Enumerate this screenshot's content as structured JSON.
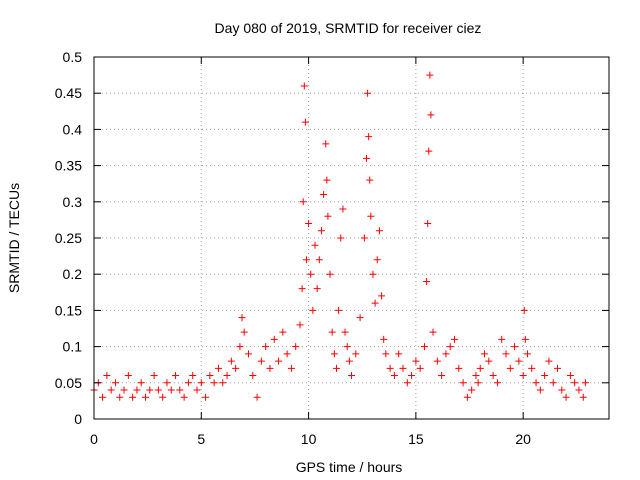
{
  "chart_data": {
    "type": "scatter",
    "title": "Day 080 of 2019, SRMTID for receiver ciez",
    "xlabel": "GPS time / hours",
    "ylabel": "SRMTID / TECUs",
    "xlim": [
      0,
      24
    ],
    "ylim": [
      0,
      0.5
    ],
    "xticks": [
      "0",
      "5",
      "10",
      "15",
      "20"
    ],
    "xtick_values": [
      0,
      5,
      10,
      15,
      20
    ],
    "yticks": [
      "0",
      "0.05",
      "0.1",
      "0.15",
      "0.2",
      "0.25",
      "0.3",
      "0.35",
      "0.4",
      "0.45",
      "0.5"
    ],
    "ytick_values": [
      0,
      0.05,
      0.1,
      0.15,
      0.2,
      0.25,
      0.3,
      0.35,
      0.4,
      0.45,
      0.5
    ],
    "grid": true,
    "marker": "+",
    "color": "#ff0000",
    "series": [
      {
        "name": "SRMTID",
        "x": [
          0.0,
          0.2,
          0.4,
          0.6,
          0.8,
          1.0,
          1.2,
          1.4,
          1.6,
          1.8,
          2.0,
          2.2,
          2.4,
          2.6,
          2.8,
          3.0,
          3.2,
          3.4,
          3.6,
          3.8,
          4.0,
          4.2,
          4.4,
          4.6,
          4.8,
          5.0,
          5.2,
          5.4,
          5.6,
          5.8,
          6.0,
          6.2,
          6.4,
          6.6,
          6.8,
          6.9,
          7.0,
          7.2,
          7.4,
          7.6,
          7.8,
          8.0,
          8.2,
          8.4,
          8.6,
          8.8,
          9.0,
          9.2,
          9.4,
          9.6,
          9.7,
          9.75,
          9.8,
          9.85,
          9.9,
          10.0,
          10.1,
          10.2,
          10.3,
          10.4,
          10.5,
          10.6,
          10.7,
          10.8,
          10.85,
          10.9,
          11.0,
          11.1,
          11.2,
          11.3,
          11.4,
          11.5,
          11.6,
          11.7,
          11.8,
          11.9,
          12.0,
          12.2,
          12.4,
          12.6,
          12.7,
          12.75,
          12.8,
          12.85,
          12.9,
          13.0,
          13.1,
          13.2,
          13.3,
          13.4,
          13.5,
          13.6,
          13.8,
          14.0,
          14.2,
          14.4,
          14.6,
          14.8,
          15.0,
          15.2,
          15.4,
          15.5,
          15.55,
          15.6,
          15.65,
          15.7,
          15.8,
          16.0,
          16.2,
          16.4,
          16.6,
          16.8,
          17.0,
          17.2,
          17.4,
          17.6,
          17.8,
          17.9,
          18.0,
          18.2,
          18.4,
          18.6,
          18.8,
          19.0,
          19.2,
          19.4,
          19.6,
          19.8,
          20.0,
          20.05,
          20.1,
          20.2,
          20.4,
          20.6,
          20.8,
          21.0,
          21.2,
          21.4,
          21.6,
          21.8,
          22.0,
          22.2,
          22.4,
          22.6,
          22.8,
          22.9
        ],
        "y": [
          0.04,
          0.05,
          0.03,
          0.06,
          0.04,
          0.05,
          0.03,
          0.04,
          0.06,
          0.03,
          0.04,
          0.05,
          0.03,
          0.04,
          0.06,
          0.04,
          0.03,
          0.05,
          0.04,
          0.06,
          0.04,
          0.03,
          0.05,
          0.06,
          0.04,
          0.05,
          0.03,
          0.06,
          0.05,
          0.07,
          0.05,
          0.06,
          0.08,
          0.07,
          0.1,
          0.14,
          0.12,
          0.09,
          0.06,
          0.03,
          0.08,
          0.1,
          0.07,
          0.11,
          0.08,
          0.12,
          0.09,
          0.07,
          0.1,
          0.13,
          0.18,
          0.3,
          0.46,
          0.41,
          0.22,
          0.27,
          0.2,
          0.15,
          0.24,
          0.18,
          0.22,
          0.26,
          0.31,
          0.38,
          0.33,
          0.28,
          0.2,
          0.12,
          0.09,
          0.07,
          0.15,
          0.25,
          0.29,
          0.12,
          0.1,
          0.08,
          0.06,
          0.09,
          0.14,
          0.25,
          0.36,
          0.45,
          0.39,
          0.33,
          0.28,
          0.2,
          0.16,
          0.22,
          0.26,
          0.17,
          0.11,
          0.09,
          0.07,
          0.06,
          0.09,
          0.07,
          0.05,
          0.06,
          0.08,
          0.07,
          0.1,
          0.19,
          0.27,
          0.37,
          0.475,
          0.42,
          0.12,
          0.08,
          0.06,
          0.09,
          0.1,
          0.11,
          0.07,
          0.05,
          0.03,
          0.04,
          0.06,
          0.05,
          0.07,
          0.09,
          0.08,
          0.06,
          0.05,
          0.11,
          0.09,
          0.07,
          0.1,
          0.08,
          0.06,
          0.15,
          0.11,
          0.09,
          0.07,
          0.05,
          0.04,
          0.06,
          0.08,
          0.05,
          0.07,
          0.04,
          0.03,
          0.06,
          0.05,
          0.04,
          0.03,
          0.05
        ]
      }
    ]
  }
}
